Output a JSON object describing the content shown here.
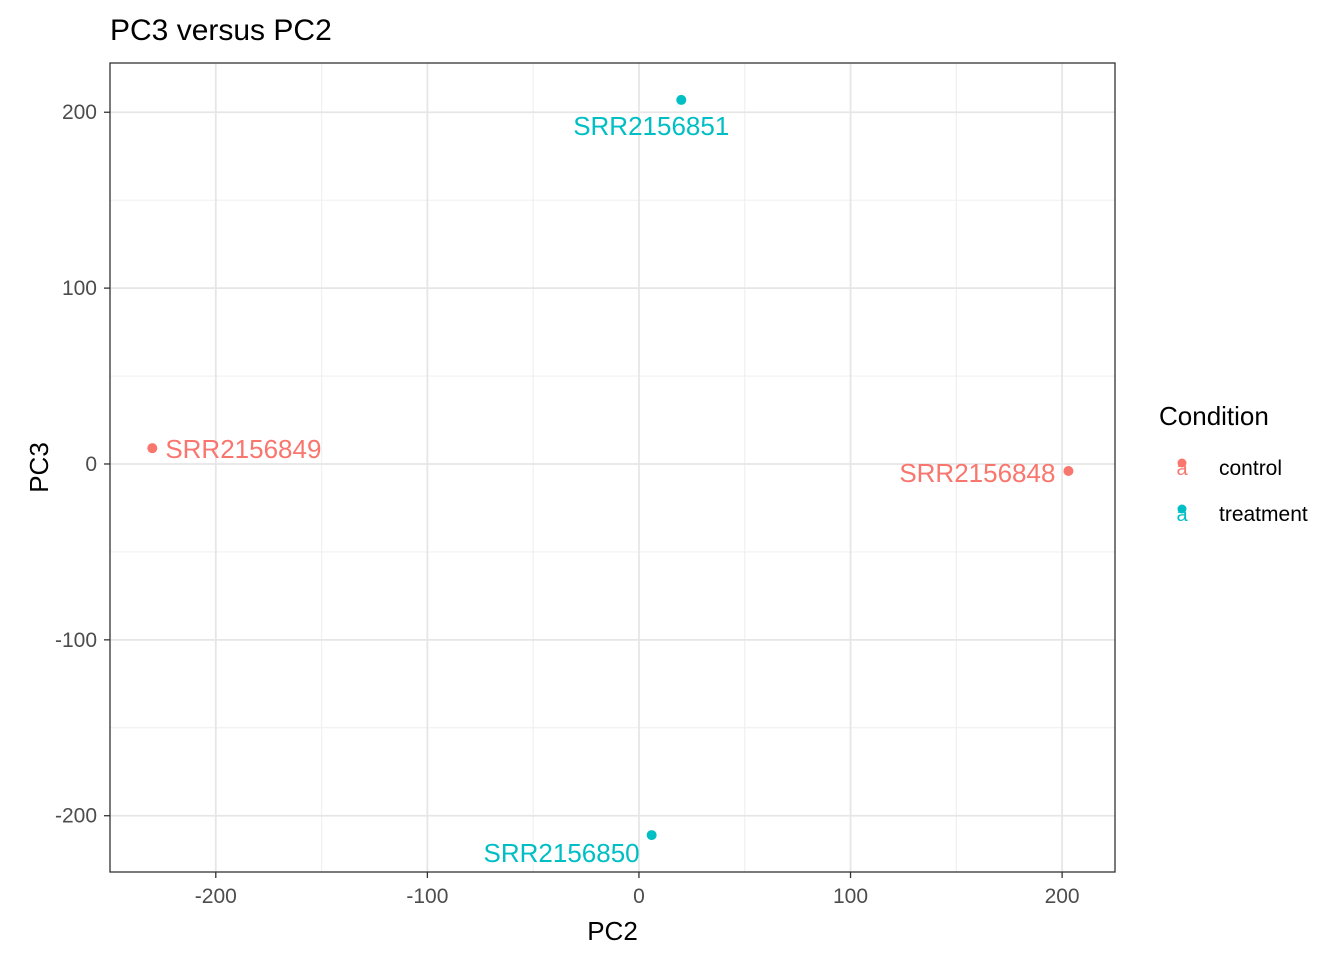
{
  "chart_data": {
    "type": "scatter",
    "title": "PC3 versus PC2",
    "xlabel": "PC2",
    "ylabel": "PC3",
    "xlim": [
      -250,
      225
    ],
    "ylim": [
      -232,
      228
    ],
    "x_ticks": [
      -200,
      -100,
      0,
      100,
      200
    ],
    "y_ticks": [
      -200,
      -100,
      0,
      100,
      200
    ],
    "grid": true,
    "legend": {
      "title": "Condition",
      "position": "right",
      "entries": [
        {
          "name": "control",
          "color": "#F8766D"
        },
        {
          "name": "treatment",
          "color": "#00BFC4"
        }
      ]
    },
    "series": [
      {
        "name": "control",
        "color": "#F8766D",
        "points": [
          {
            "label": "SRR2156849",
            "x": -230,
            "y": 9
          },
          {
            "label": "SRR2156848",
            "x": 203,
            "y": -4
          }
        ]
      },
      {
        "name": "treatment",
        "color": "#00BFC4",
        "points": [
          {
            "label": "SRR2156851",
            "x": 20,
            "y": 207
          },
          {
            "label": "SRR2156850",
            "x": 6,
            "y": -211
          }
        ]
      }
    ]
  }
}
